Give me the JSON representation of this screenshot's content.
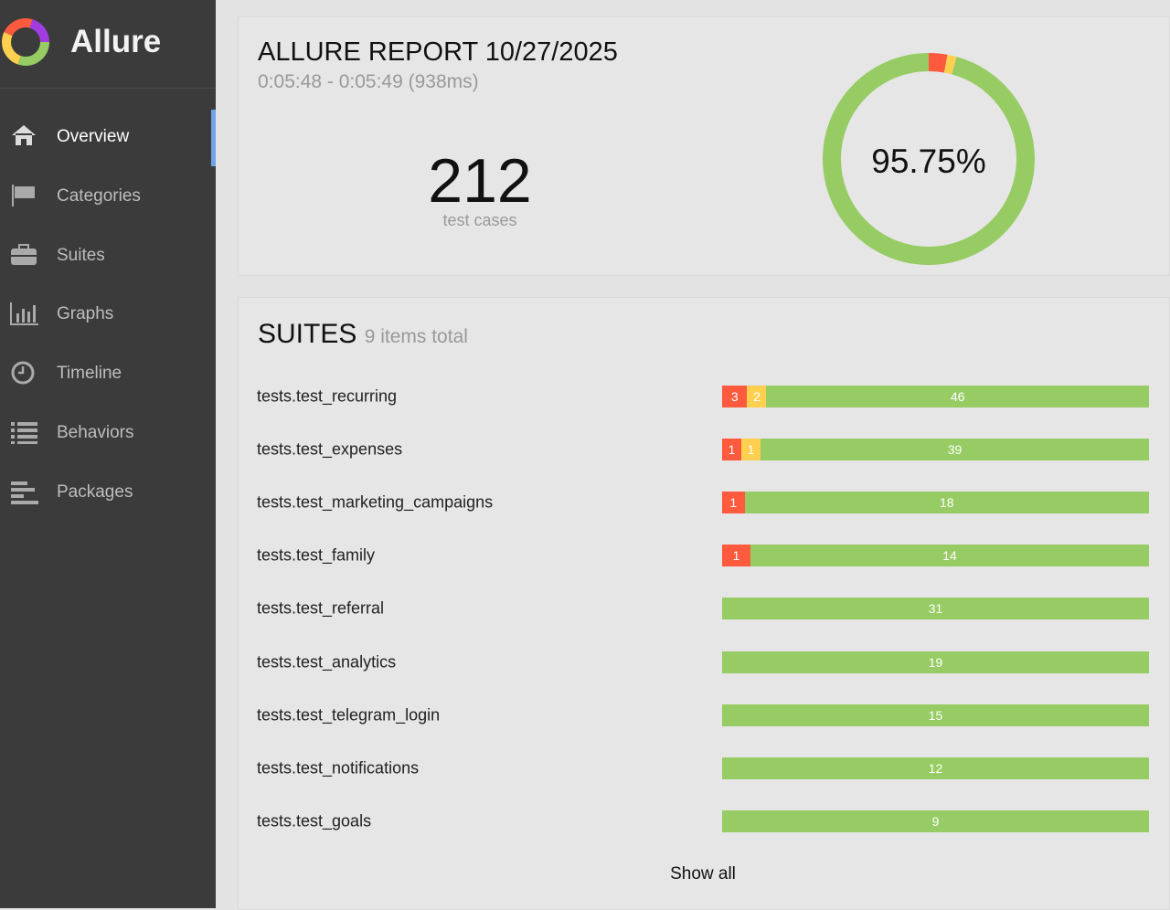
{
  "sidebar": {
    "logo": "Allure",
    "items": [
      "Overview",
      "Categories",
      "Suites",
      "Graphs",
      "Timeline",
      "Behaviors",
      "Packages"
    ]
  },
  "summary": {
    "title": "ALLURE REPORT 10/27/2025",
    "time": "0:05:48 - 0:05:49 (938ms)",
    "count": 212,
    "count_label": "test cases",
    "percent": "95.75%"
  },
  "suites": {
    "title": "SUITES",
    "subtitle": "9 items total",
    "rows": [
      {
        "name": "tests.test_recurring",
        "failed": 3,
        "broken": 2,
        "passed": 46
      },
      {
        "name": "tests.test_expenses",
        "failed": 1,
        "broken": 1,
        "passed": 39
      },
      {
        "name": "tests.test_marketing_campaigns",
        "failed": 1,
        "passed": 18
      },
      {
        "name": "tests.test_family",
        "failed": 1,
        "passed": 14
      },
      {
        "name": "tests.test_referral",
        "passed": 31
      },
      {
        "name": "tests.test_analytics",
        "passed": 19
      },
      {
        "name": "tests.test_telegram_login",
        "passed": 15
      },
      {
        "name": "tests.test_notifications",
        "passed": 12
      },
      {
        "name": "tests.test_goals",
        "passed": 9
      }
    ],
    "show_all": "Show all"
  }
}
